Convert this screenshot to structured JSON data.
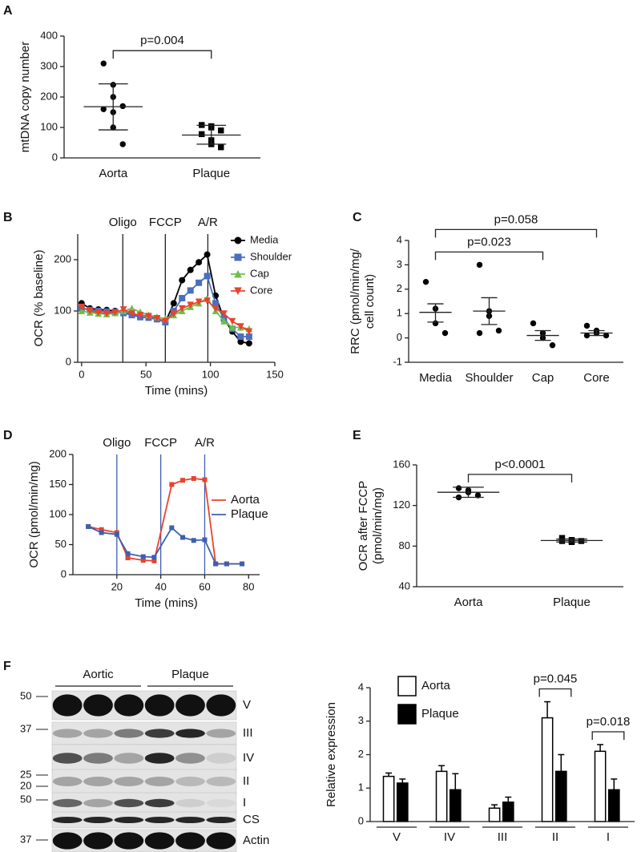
{
  "chart_data": [
    {
      "type": "dot",
      "panel": "A",
      "ylabel": [
        "mtDNA copy number"
      ],
      "categories": [
        "Aorta",
        "Plaque"
      ],
      "markers": [
        "circle",
        "square"
      ],
      "points": [
        [
          310,
          240,
          200,
          170,
          160,
          150,
          100,
          45
        ],
        [
          108,
          104,
          100,
          90,
          78,
          58,
          45,
          35
        ]
      ],
      "means": [
        168,
        75
      ],
      "lower": [
        92,
        45
      ],
      "upper": [
        243,
        107
      ],
      "ylim": [
        0,
        400
      ],
      "yticks": [
        0,
        100,
        200,
        300,
        400
      ],
      "color": "#000000",
      "brackets": [
        {
          "text": "p=0.004",
          "from": 0,
          "to": 1
        }
      ]
    },
    {
      "type": "line",
      "panel": "B",
      "xlabel": "Time (mins)",
      "ylabel": [
        "OCR (% baseline)"
      ],
      "x": [
        0,
        6.5,
        13,
        19.5,
        26,
        32.5,
        39,
        45.5,
        52,
        58.5,
        65,
        71.5,
        78,
        84.5,
        91,
        97.5,
        104,
        110.5,
        117,
        123.5,
        130
      ],
      "series": [
        {
          "name": "Media",
          "color": "#000000",
          "marker": "circle",
          "values": [
            115,
            105,
            103,
            102,
            100,
            97,
            93,
            88,
            87,
            84,
            78,
            115,
            160,
            180,
            195,
            210,
            130,
            85,
            60,
            40,
            37
          ]
        },
        {
          "name": "Shoulder",
          "color": "#4a6fc0",
          "marker": "square",
          "values": [
            105,
            102,
            100,
            99,
            98,
            96,
            92,
            88,
            87,
            84,
            78,
            100,
            125,
            140,
            155,
            168,
            115,
            85,
            65,
            50,
            50
          ]
        },
        {
          "name": "Cap",
          "color": "#6cc04a",
          "marker": "triangle",
          "values": [
            100,
            97,
            95,
            94,
            96,
            100,
            105,
            98,
            92,
            88,
            85,
            92,
            100,
            108,
            115,
            125,
            100,
            80,
            68,
            68,
            65
          ]
        },
        {
          "name": "Core",
          "color": "#e8432e",
          "marker": "triangle-down",
          "values": [
            108,
            100,
            97,
            95,
            97,
            103,
            95,
            92,
            90,
            86,
            80,
            95,
            105,
            112,
            118,
            120,
            105,
            95,
            80,
            70,
            60
          ]
        }
      ],
      "events": [
        {
          "label": "Oligo",
          "x": 32
        },
        {
          "label": "FCCP",
          "x": 65
        },
        {
          "label": "A/R",
          "x": 98
        }
      ],
      "xlim": [
        -3,
        150
      ],
      "xticks": [
        0,
        50,
        100,
        150
      ],
      "ylim": [
        0,
        250
      ],
      "yticks": [
        0,
        100,
        200
      ],
      "legend": "upper right"
    },
    {
      "type": "dot",
      "panel": "C",
      "ylabel": [
        "RRC (pmol/min/mg/",
        "cell count)"
      ],
      "categories": [
        "Media",
        "Shoulder",
        "Cap",
        "Core"
      ],
      "markers": [
        "circle",
        "circle",
        "circle",
        "circle"
      ],
      "points": [
        [
          2.3,
          1.2,
          0.6,
          0.2
        ],
        [
          3.0,
          1.1,
          0.9,
          0.3,
          0.2
        ],
        [
          0.6,
          0.2,
          0.0,
          -0.3
        ],
        [
          0.5,
          0.3,
          0.2,
          0.1,
          0.1
        ]
      ],
      "means": [
        1.05,
        1.1,
        0.1,
        0.2
      ],
      "lower": [
        0.65,
        0.55,
        -0.1,
        0.1
      ],
      "upper": [
        1.4,
        1.65,
        0.3,
        0.3
      ],
      "ylim": [
        -1,
        4
      ],
      "yticks": [
        -1,
        0,
        1,
        2,
        3,
        4
      ],
      "color": "#000000",
      "brackets": [
        {
          "text": "p=0.023",
          "from": 0,
          "to": 2
        },
        {
          "text": "p=0.058",
          "from": 0,
          "to": 3
        }
      ]
    },
    {
      "type": "line",
      "panel": "D",
      "xlabel": "Time (mins)",
      "ylabel": [
        "OCR (pmol/min/mg)"
      ],
      "x": [
        7,
        13,
        20,
        25,
        32,
        37,
        45,
        50,
        55,
        60,
        65,
        70,
        77
      ],
      "series": [
        {
          "name": "Aorta",
          "color": "#e8432e",
          "marker": "square",
          "values": [
            80,
            75,
            70,
            28,
            24,
            23,
            150,
            157,
            160,
            158,
            18,
            18,
            18
          ]
        },
        {
          "name": "Plaque",
          "color": "#3f5fae",
          "marker": "square",
          "values": [
            80,
            70,
            67,
            35,
            30,
            29,
            78,
            62,
            57,
            58,
            18,
            18,
            18
          ]
        }
      ],
      "events": [
        {
          "label": "Oligo",
          "x": 20
        },
        {
          "label": "FCCP",
          "x": 40
        },
        {
          "label": "A/R",
          "x": 60
        }
      ],
      "xlim": [
        0,
        85
      ],
      "xticks": [
        20,
        40,
        60,
        80
      ],
      "ylim": [
        0,
        200
      ],
      "yticks": [
        0,
        50,
        100,
        150,
        200
      ],
      "legend": "right"
    },
    {
      "type": "dot",
      "panel": "E",
      "ylabel": [
        "OCR after FCCP",
        "(pmol/min/mg)"
      ],
      "categories": [
        "Aorta",
        "Plaque"
      ],
      "markers": [
        "circle",
        "square"
      ],
      "points": [
        [
          137,
          135,
          133,
          130,
          128
        ],
        [
          88,
          86,
          85,
          85,
          85,
          85,
          84
        ]
      ],
      "means": [
        133,
        85.5
      ],
      "lower": [
        128,
        84
      ],
      "upper": [
        138,
        87
      ],
      "ylim": [
        40,
        160
      ],
      "yticks": [
        40,
        80,
        120,
        160
      ],
      "color": "#000000",
      "brackets": [
        {
          "text": "p<0.0001",
          "from": 0,
          "to": 1
        }
      ]
    },
    {
      "type": "bar",
      "panel": "F",
      "ylabel": [
        "Relative expression"
      ],
      "categories": [
        "V",
        "IV",
        "III",
        "II",
        "I"
      ],
      "series": [
        {
          "name": "Aorta",
          "color": "#ffffff",
          "values": [
            1.35,
            1.5,
            0.4,
            3.1,
            2.1
          ],
          "errors": [
            0.1,
            0.17,
            0.1,
            0.48,
            0.2
          ]
        },
        {
          "name": "Plaque",
          "color": "#000000",
          "values": [
            1.15,
            0.95,
            0.58,
            1.5,
            0.95
          ],
          "errors": [
            0.12,
            0.48,
            0.15,
            0.5,
            0.32
          ]
        }
      ],
      "ylim": [
        0,
        4
      ],
      "yticks": [
        0,
        1,
        2,
        3,
        4
      ],
      "brackets": [
        {
          "text": "p=0.045",
          "from": 3,
          "to": 3
        },
        {
          "text": "p=0.018",
          "from": 4,
          "to": 4
        }
      ]
    }
  ],
  "blot": {
    "groups": [
      "Aortic",
      "Plaque"
    ],
    "bands": [
      "V",
      "III",
      "IV",
      "II",
      "I",
      "CS",
      "Actin"
    ],
    "markers": [
      "50",
      "37",
      "25",
      "20",
      "50",
      "37"
    ]
  }
}
